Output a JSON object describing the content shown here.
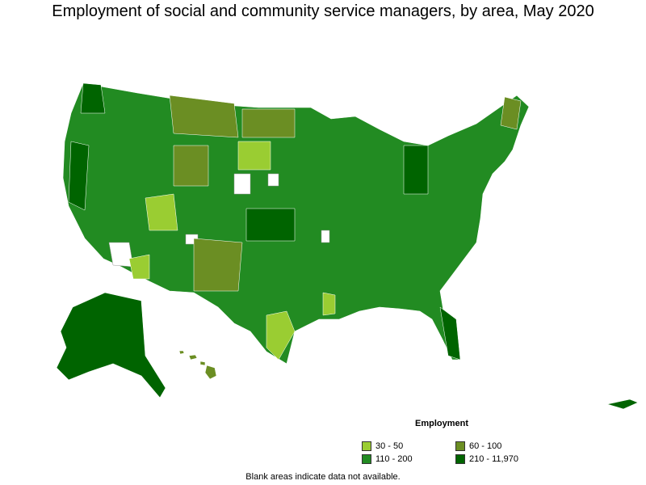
{
  "title": "Employment of social and community service managers, by area, May 2020",
  "legend": {
    "title": "Employment",
    "items": [
      {
        "label": "30 - 50",
        "color": "#9acd32"
      },
      {
        "label": "60 - 100",
        "color": "#6b8e23"
      },
      {
        "label": "110 - 200",
        "color": "#228b22"
      },
      {
        "label": "210 - 11,970",
        "color": "#006400"
      }
    ]
  },
  "footnote": "Blank areas indicate data not available."
}
